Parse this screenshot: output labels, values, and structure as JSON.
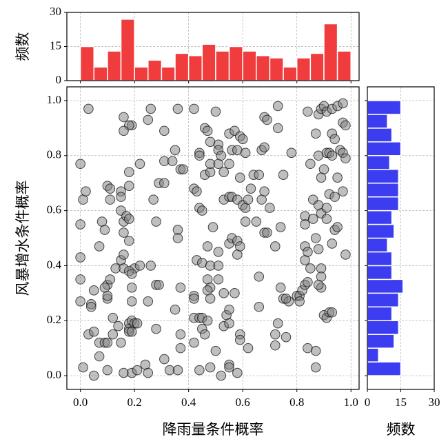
{
  "chart_data": [
    {
      "type": "scatter",
      "xlabel": "降雨量条件概率",
      "ylabel": "风暴增水条件概率",
      "color": "#808080",
      "edgecolor": "#000000",
      "grid": true,
      "xlim": [
        -0.05,
        1.03
      ],
      "ylim": [
        -0.05,
        1.05
      ],
      "xticks": [
        {
          "value": 0,
          "label": "0.0"
        },
        0.2,
        0.4,
        0.6,
        0.8,
        {
          "value": 1,
          "label": "1.0"
        }
      ],
      "yticks": [
        {
          "value": 0,
          "label": "0.0"
        },
        0.2,
        0.4,
        0.6,
        0.8,
        {
          "value": 1,
          "label": "1.0"
        }
      ],
      "x": [
        0.03,
        0.16,
        0.19,
        0.18,
        0.16,
        0.25,
        0.26,
        0.31,
        0.36,
        0.42,
        0.46,
        0.47,
        0.48,
        0.5,
        0.51,
        0.51,
        0.55,
        0.57,
        0.59,
        0.6,
        0.68,
        0.69,
        0.73,
        0.73,
        0.84,
        0.87,
        0.88,
        0.89,
        0.9,
        0.91,
        0.93,
        0.95,
        0.97,
        0.93,
        0.94,
        0.97,
        0.98,
        0.0,
        0.22,
        0.18,
        0.31,
        0.35,
        0.34,
        0.37,
        0.38,
        0.44,
        0.44,
        0.46,
        0.48,
        0.48,
        0.51,
        0.52,
        0.53,
        0.55,
        0.56,
        0.58,
        0.61,
        0.64,
        0.67,
        0.68,
        0.75,
        0.78,
        0.85,
        0.88,
        0.91,
        0.92,
        0.9,
        0.89,
        0.93,
        0.96,
        0.97,
        0.98,
        0.01,
        0.02,
        0.1,
        0.11,
        0.11,
        0.15,
        0.15,
        0.18,
        0.29,
        0.27,
        0.31,
        0.42,
        0.43,
        0.44,
        0.45,
        0.53,
        0.55,
        0.56,
        0.58,
        0.59,
        0.6,
        0.61,
        0.62,
        0.63,
        0.66,
        0.67,
        0.68,
        0.7,
        0.86,
        0.88,
        0.89,
        0.91,
        0.92,
        0.94,
        0.97,
        0.95,
        0.0,
        0.08,
        0.09,
        0.15,
        0.16,
        0.17,
        0.18,
        0.16,
        0.28,
        0.36,
        0.36,
        0.49,
        0.55,
        0.56,
        0.58,
        0.61,
        0.65,
        0.68,
        0.69,
        0.74,
        0.83,
        0.83,
        0.86,
        0.87,
        0.91,
        0.94,
        0.95,
        0.0,
        0.07,
        0.13,
        0.15,
        0.16,
        0.18,
        0.2,
        0.22,
        0.26,
        0.43,
        0.45,
        0.47,
        0.48,
        0.51,
        0.51,
        0.58,
        0.59,
        0.72,
        0.83,
        0.83,
        0.84,
        0.85,
        0.88,
        0.89,
        0.93,
        0.98,
        0.0,
        0.1,
        0.11,
        0.16,
        0.18,
        0.19,
        0.19,
        0.28,
        0.29,
        0.37,
        0.47,
        0.48,
        0.51,
        0.53,
        0.57,
        0.66,
        0.74,
        0.75,
        0.77,
        0.8,
        0.81,
        0.82,
        0.83,
        0.84,
        0.89,
        0.89,
        0.88,
        0.09,
        0.0,
        0.04,
        0.04,
        0.05,
        0.1,
        0.1,
        0.19,
        0.25,
        0.35,
        0.42,
        0.42,
        0.47,
        0.48,
        0.42,
        0.44,
        0.45,
        0.47,
        0.54,
        0.55,
        0.66,
        0.76,
        0.81,
        0.9,
        0.91,
        0.92,
        0.93,
        0.03,
        0.05,
        0.07,
        0.09,
        0.1,
        0.12,
        0.12,
        0.14,
        0.15,
        0.18,
        0.18,
        0.18,
        0.19,
        0.2,
        0.21,
        0.19,
        0.28,
        0.37,
        0.42,
        0.45,
        0.46,
        0.53,
        0.55,
        0.59,
        0.59,
        0.72,
        0.73,
        0.76,
        0.84,
        0.01,
        0.05,
        0.07,
        0.1,
        0.16,
        0.19,
        0.21,
        0.24,
        0.25,
        0.31,
        0.33,
        0.36,
        0.37,
        0.44,
        0.48,
        0.5,
        0.52,
        0.55,
        0.55,
        0.62,
        0.72,
        0.87,
        0.87,
        0.58
      ],
      "values": [
        0.97,
        0.94,
        0.91,
        0.91,
        0.89,
        0.93,
        0.97,
        0.89,
        0.97,
        0.97,
        0.9,
        0.89,
        0.85,
        0.96,
        0.84,
        0.82,
        0.88,
        0.89,
        0.87,
        0.86,
        0.94,
        0.93,
        0.98,
        0.9,
        0.96,
        0.88,
        0.95,
        0.97,
        0.98,
        0.96,
        0.97,
        0.98,
        0.99,
        0.88,
        0.86,
        0.92,
        0.91,
        0.77,
        0.77,
        0.74,
        0.78,
        0.82,
        0.78,
        0.75,
        0.75,
        0.81,
        0.8,
        0.73,
        0.74,
        0.77,
        0.77,
        0.8,
        0.74,
        0.77,
        0.82,
        0.82,
        0.81,
        0.73,
        0.82,
        0.83,
        0.73,
        0.81,
        0.77,
        0.8,
        0.81,
        0.81,
        0.75,
        0.72,
        0.8,
        0.82,
        0.81,
        0.79,
        0.64,
        0.67,
        0.69,
        0.68,
        0.64,
        0.67,
        0.65,
        0.69,
        0.7,
        0.64,
        0.7,
        0.68,
        0.67,
        0.61,
        0.6,
        0.64,
        0.65,
        0.65,
        0.64,
        0.72,
        0.62,
        0.61,
        0.64,
        0.68,
        0.73,
        0.64,
        0.67,
        0.61,
        0.64,
        0.62,
        0.59,
        0.61,
        0.66,
        0.65,
        0.67,
        0.72,
        0.55,
        0.56,
        0.53,
        0.6,
        0.56,
        0.58,
        0.57,
        0.52,
        0.56,
        0.53,
        0.5,
        0.54,
        0.48,
        0.5,
        0.49,
        0.56,
        0.56,
        0.52,
        0.52,
        0.54,
        0.58,
        0.55,
        0.57,
        0.5,
        0.57,
        0.53,
        0.54,
        0.43,
        0.47,
        0.39,
        0.42,
        0.44,
        0.49,
        0.39,
        0.4,
        0.4,
        0.42,
        0.41,
        0.47,
        0.4,
        0.45,
        0.4,
        0.44,
        0.47,
        0.47,
        0.47,
        0.42,
        0.45,
        0.39,
        0.46,
        0.39,
        0.48,
        0.44,
        0.35,
        0.33,
        0.35,
        0.39,
        0.38,
        0.37,
        0.32,
        0.33,
        0.33,
        0.32,
        0.35,
        0.32,
        0.35,
        0.3,
        0.3,
        0.36,
        0.32,
        0.28,
        0.27,
        0.29,
        0.29,
        0.31,
        0.33,
        0.34,
        0.32,
        0.36,
        0.33,
        0.32,
        0.27,
        0.26,
        0.25,
        0.31,
        0.28,
        0.29,
        0.27,
        0.27,
        0.24,
        0.29,
        0.28,
        0.31,
        0.28,
        0.21,
        0.21,
        0.21,
        0.2,
        0.22,
        0.24,
        0.25,
        0.28,
        0.27,
        0.22,
        0.21,
        0.23,
        0.23,
        0.15,
        0.16,
        0.12,
        0.12,
        0.12,
        0.15,
        0.21,
        0.18,
        0.12,
        0.19,
        0.17,
        0.16,
        0.2,
        0.19,
        0.19,
        0.16,
        0.17,
        0.15,
        0.12,
        0.17,
        0.15,
        0.18,
        0.19,
        0.15,
        0.13,
        0.15,
        0.19,
        0.14,
        0.1,
        0.03,
        0.0,
        0.07,
        0.02,
        0.01,
        0.01,
        0.02,
        0.04,
        0.01,
        0.06,
        0.02,
        0.02,
        0.1,
        0.02,
        0.03,
        0.09,
        0.0,
        0.04,
        0.03,
        0.1,
        0.11,
        0.03,
        0.09,
        0.01
      ]
    },
    {
      "type": "histogram",
      "ylabel": "频数",
      "color": "#f03c3c",
      "grid": true,
      "bins": [
        0,
        0.05,
        0.1,
        0.15,
        0.2,
        0.25,
        0.3,
        0.35,
        0.4,
        0.45,
        0.5,
        0.55,
        0.6,
        0.65,
        0.7,
        0.75,
        0.8,
        0.85,
        0.9,
        0.95,
        1
      ],
      "values": [
        15,
        6,
        13,
        27,
        6,
        9,
        6,
        12,
        11,
        16,
        13,
        15,
        13,
        11,
        10,
        6,
        10,
        12,
        25,
        13
      ],
      "xlim": [
        -0.05,
        1.03
      ],
      "xticks": [
        0,
        0.2,
        0.4,
        0.6,
        0.8,
        1
      ],
      "ylim": [
        0,
        30
      ],
      "yticks": [
        0,
        15,
        30
      ]
    },
    {
      "type": "histogram",
      "orientation": "horizontal",
      "xlabel": "频数",
      "color": "#3c3cf0",
      "grid": true,
      "bins": [
        0,
        0.05,
        0.1,
        0.15,
        0.2,
        0.25,
        0.3,
        0.35,
        0.4,
        0.45,
        0.5,
        0.55,
        0.6,
        0.65,
        0.7,
        0.75,
        0.8,
        0.85,
        0.9,
        0.95,
        1
      ],
      "values": [
        15,
        5,
        12,
        14,
        11,
        14,
        16,
        11,
        11,
        9,
        12,
        11,
        14,
        14,
        14,
        10,
        15,
        11,
        9,
        15
      ],
      "xlim": [
        0,
        30
      ],
      "xticks": [
        0,
        15,
        30
      ],
      "ylim": [
        -0.05,
        1.05
      ],
      "yticks": [
        0,
        0.2,
        0.4,
        0.6,
        0.8,
        1
      ]
    }
  ]
}
